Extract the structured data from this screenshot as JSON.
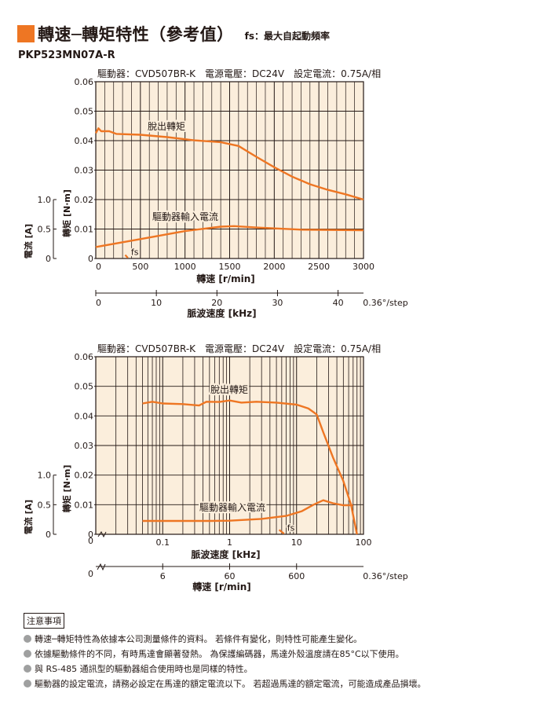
{
  "header": {
    "title": "轉速─轉矩特性（參考值）",
    "subtitle": "fs：最大自起動頻率",
    "model": "PKP523MN07A-R"
  },
  "notes": {
    "heading": "注意事項",
    "items": [
      "轉速─轉矩特性為依據本公司測量條件的資料。 若條件有變化，則特性可能產生變化。",
      "依據驅動條件的不同，有時馬達會顯著發熱。 為保護編碼器，馬達外殼溫度請在85°C以下使用。",
      "與 RS-485 通訊型的驅動器組合使用時也是同樣的特性。",
      "驅動器的設定電流，請務必設定在馬達的額定電流以下。 若超過馬達的額定電流，可能造成產品損壞。"
    ]
  },
  "colors": {
    "accent": "#ee7623",
    "plot_bg": "#fbeedc",
    "grid": "#231815"
  },
  "chart_data": [
    {
      "type": "line",
      "condition": "驅動器：CVD507BR-K　電源電壓：DC24V　設定電流：0.75A/相",
      "xlabel": "轉速 [r/min]",
      "ylabel": "轉矩 [N·m]",
      "y2label": "電流 [A]",
      "x2label": "脈波速度 [kHz]",
      "xlim": [
        0,
        3000
      ],
      "xticks": [
        "0",
        "500",
        "1000",
        "1500",
        "2000",
        "2500",
        "3000"
      ],
      "ylim": [
        0,
        0.06
      ],
      "yticks": [
        "0",
        "0.01",
        "0.02",
        "0.03",
        "0.04",
        "0.05",
        "0.06"
      ],
      "y2lim": [
        0,
        1.0
      ],
      "y2ticks": [
        "0",
        "0.5",
        "1.0"
      ],
      "x2ticks": [
        "0",
        "10",
        "20",
        "30",
        "40"
      ],
      "x2_step_label": "0.36°/step",
      "fs_label": "fs",
      "series": [
        {
          "name": "脫出轉矩",
          "points": [
            [
              0,
              0.0425
            ],
            [
              30,
              0.0442
            ],
            [
              60,
              0.0432
            ],
            [
              150,
              0.0432
            ],
            [
              230,
              0.0423
            ],
            [
              500,
              0.042
            ],
            [
              800,
              0.0412
            ],
            [
              1100,
              0.0401
            ],
            [
              1400,
              0.0395
            ],
            [
              1600,
              0.0382
            ],
            [
              1800,
              0.0345
            ],
            [
              2000,
              0.031
            ],
            [
              2200,
              0.0278
            ],
            [
              2400,
              0.0252
            ],
            [
              2600,
              0.0233
            ],
            [
              2800,
              0.0218
            ],
            [
              3000,
              0.02
            ]
          ]
        },
        {
          "name": "驅動器輸入電流",
          "points": [
            [
              0,
              0.0039
            ],
            [
              500,
              0.0066
            ],
            [
              1000,
              0.0093
            ],
            [
              1400,
              0.0108
            ],
            [
              1550,
              0.011
            ],
            [
              1800,
              0.0105
            ],
            [
              2300,
              0.0098
            ],
            [
              3000,
              0.0096
            ]
          ]
        }
      ],
      "fs": {
        "x": [
          330,
          360
        ],
        "y": [
          0.0012,
          0.0002
        ]
      }
    },
    {
      "type": "line",
      "condition": "驅動器：CVD507BR-K　電源電壓：DC24V　設定電流：0.75A/相",
      "xscale": "log",
      "xlabel": "脈波速度 [kHz]",
      "ylabel": "轉矩 [N·m]",
      "y2label": "電流 [A]",
      "x2label": "轉速 [r/min]",
      "xlim": [
        0.01,
        100
      ],
      "xticks": [
        "0",
        "0.1",
        "1",
        "10",
        "100"
      ],
      "ylim": [
        0,
        0.06
      ],
      "yticks": [
        "0",
        "0.01",
        "0.02",
        "0.03",
        "0.04",
        "0.05",
        "0.06"
      ],
      "y2lim": [
        0,
        1.0
      ],
      "y2ticks": [
        "0",
        "0.5",
        "1.0"
      ],
      "x2ticks": [
        "0",
        "6",
        "60",
        "600"
      ],
      "x2_step_label": "0.36°/step",
      "fs_label": "fs",
      "series": [
        {
          "name": "脫出轉矩",
          "points": [
            [
              0.05,
              0.0442
            ],
            [
              0.07,
              0.0448
            ],
            [
              0.1,
              0.0442
            ],
            [
              0.2,
              0.044
            ],
            [
              0.35,
              0.0435
            ],
            [
              0.45,
              0.0448
            ],
            [
              0.7,
              0.0447
            ],
            [
              1,
              0.0452
            ],
            [
              1.5,
              0.0445
            ],
            [
              2.5,
              0.0448
            ],
            [
              5,
              0.0445
            ],
            [
              10,
              0.0438
            ],
            [
              15,
              0.0425
            ],
            [
              20,
              0.0405
            ],
            [
              25,
              0.0345
            ],
            [
              35,
              0.026
            ],
            [
              50,
              0.018
            ],
            [
              65,
              0.01
            ],
            [
              80,
              0.0
            ]
          ]
        },
        {
          "name": "驅動器輸入電流",
          "points": [
            [
              0.05,
              0.0045
            ],
            [
              0.5,
              0.0045
            ],
            [
              1,
              0.0046
            ],
            [
              3,
              0.0052
            ],
            [
              7,
              0.0062
            ],
            [
              12,
              0.0078
            ],
            [
              18,
              0.01
            ],
            [
              25,
              0.0115
            ],
            [
              35,
              0.0105
            ],
            [
              50,
              0.0098
            ],
            [
              70,
              0.0098
            ]
          ]
        }
      ],
      "fs": {
        "x": [
          5.5,
          6.5
        ],
        "y": [
          0.0015,
          0.0002
        ]
      }
    }
  ]
}
